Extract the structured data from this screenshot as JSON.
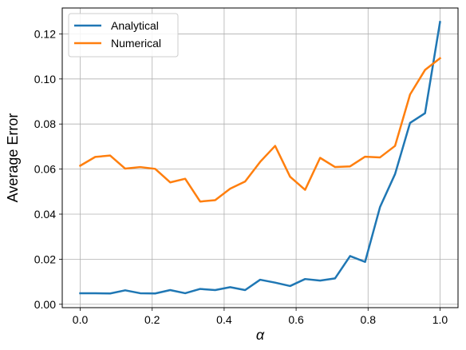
{
  "chart_data": {
    "type": "line",
    "title": "",
    "xlabel": "α",
    "ylabel": "Average Error",
    "xlim": [
      -0.05,
      1.05
    ],
    "ylim": [
      -0.0015,
      0.1315
    ],
    "xticks": [
      0.0,
      0.2,
      0.4,
      0.6,
      0.8,
      1.0
    ],
    "xtick_labels": [
      "0.0",
      "0.2",
      "0.4",
      "0.6",
      "0.8",
      "1.0"
    ],
    "yticks": [
      0.0,
      0.02,
      0.04,
      0.06,
      0.08,
      0.1,
      0.12
    ],
    "ytick_labels": [
      "0.00",
      "0.02",
      "0.04",
      "0.06",
      "0.08",
      "0.10",
      "0.12"
    ],
    "grid": true,
    "legend_position": "top-left",
    "x": [
      0.0,
      0.0417,
      0.0833,
      0.125,
      0.1667,
      0.2083,
      0.25,
      0.2917,
      0.3333,
      0.375,
      0.4167,
      0.4583,
      0.5,
      0.5417,
      0.5833,
      0.625,
      0.6667,
      0.7083,
      0.75,
      0.7917,
      0.8333,
      0.875,
      0.9167,
      0.9583,
      1.0
    ],
    "series": [
      {
        "name": "Analytical",
        "color": "#1f77b4",
        "values": [
          0.0049,
          0.0049,
          0.0048,
          0.0062,
          0.0049,
          0.0048,
          0.0063,
          0.0049,
          0.0068,
          0.0063,
          0.0076,
          0.0063,
          0.0109,
          0.0096,
          0.0081,
          0.0112,
          0.0105,
          0.0115,
          0.0214,
          0.0188,
          0.0432,
          0.0578,
          0.0805,
          0.0848,
          0.1253
        ]
      },
      {
        "name": "Numerical",
        "color": "#ff7f0e",
        "values": [
          0.0615,
          0.0654,
          0.066,
          0.0602,
          0.0609,
          0.0601,
          0.0541,
          0.0557,
          0.0456,
          0.0462,
          0.0513,
          0.0545,
          0.0632,
          0.0703,
          0.0566,
          0.0508,
          0.065,
          0.0609,
          0.0612,
          0.0655,
          0.0652,
          0.0703,
          0.0931,
          0.104,
          0.1092
        ]
      }
    ]
  }
}
